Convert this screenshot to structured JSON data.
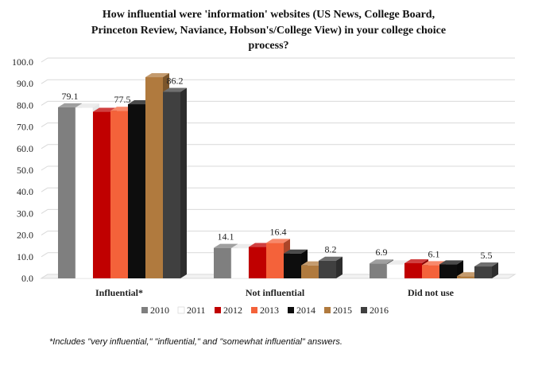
{
  "footnote": "*Includes \"very influential,\" \"influential,\" and \"somewhat influential\" answers.",
  "chart_data": {
    "type": "bar",
    "title_lines": [
      "How influential were 'information' websites (US News, College Board,",
      "Princeton Review, Naviance, Hobson's/College View) in your college choice",
      "process?"
    ],
    "xlabel": "",
    "ylabel": "",
    "ylim": [
      0,
      100
    ],
    "yticks": [
      "0.0",
      "10.0",
      "20.0",
      "30.0",
      "40.0",
      "50.0",
      "60.0",
      "70.0",
      "80.0",
      "90.0",
      "100.0"
    ],
    "grid": true,
    "legend_position": "bottom",
    "categories": [
      "Influential*",
      "Not influential",
      "Did not use"
    ],
    "series": [
      {
        "name": "2010",
        "color": "#7f7f7f",
        "values": [
          79.1,
          14.1,
          6.9
        ]
      },
      {
        "name": "2011",
        "color": "#ffffff",
        "values": [
          79.0,
          14.0,
          6.5
        ]
      },
      {
        "name": "2012",
        "color": "#c00000",
        "values": [
          77.0,
          14.5,
          7.0
        ]
      },
      {
        "name": "2013",
        "color": "#f4623a",
        "values": [
          77.5,
          16.4,
          6.1
        ]
      },
      {
        "name": "2014",
        "color": "#0d0d0d",
        "values": [
          80.5,
          11.5,
          6.5
        ]
      },
      {
        "name": "2015",
        "color": "#b07a3e",
        "values": [
          93.0,
          6.0,
          1.0
        ]
      },
      {
        "name": "2016",
        "color": "#404040",
        "values": [
          86.2,
          8.2,
          5.5
        ]
      }
    ],
    "data_labels": [
      {
        "text": "79.1",
        "category": 0,
        "series": 0
      },
      {
        "text": "77.5",
        "category": 0,
        "series": 3
      },
      {
        "text": "86.2",
        "category": 0,
        "series": 6
      },
      {
        "text": "14.1",
        "category": 1,
        "series": 0
      },
      {
        "text": "16.4",
        "category": 1,
        "series": 3
      },
      {
        "text": "8.2",
        "category": 1,
        "series": 6
      },
      {
        "text": "6.9",
        "category": 2,
        "series": 0
      },
      {
        "text": "6.1",
        "category": 2,
        "series": 3
      },
      {
        "text": "5.5",
        "category": 2,
        "series": 6
      }
    ]
  }
}
